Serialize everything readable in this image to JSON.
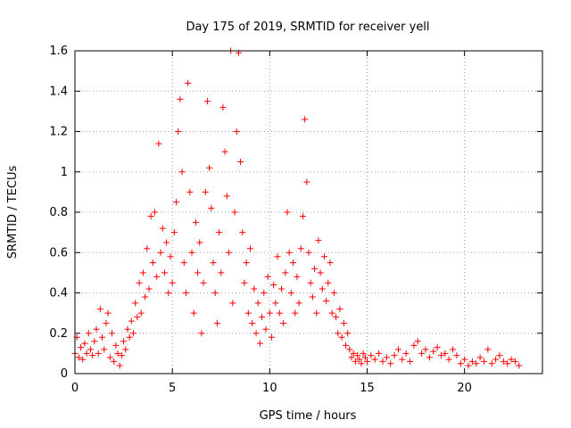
{
  "chart_data": {
    "type": "scatter",
    "title": "Day 175 of 2019, SRMTID for receiver yell",
    "xlabel": "GPS time / hours",
    "ylabel": "SRMTID / TECUs",
    "xlim": [
      0,
      24
    ],
    "ylim": [
      0,
      1.6
    ],
    "xticks": [
      0,
      5,
      10,
      15,
      20
    ],
    "xtick_labels": [
      "0",
      "5",
      "10",
      "15",
      "20"
    ],
    "yticks": [
      0,
      0.2,
      0.4,
      0.6,
      0.8,
      1,
      1.2,
      1.4,
      1.6
    ],
    "ytick_labels": [
      "0",
      "0.2",
      "0.4",
      "0.6",
      "0.8",
      "1",
      "1.2",
      "1.4",
      "1.6"
    ],
    "grid": true,
    "marker": "+",
    "marker_color": "#ff0000",
    "series": [
      {
        "name": "SRMTID",
        "points": [
          [
            0.0,
            0.1
          ],
          [
            0.1,
            0.18
          ],
          [
            0.2,
            0.08
          ],
          [
            0.3,
            0.13
          ],
          [
            0.4,
            0.07
          ],
          [
            0.5,
            0.15
          ],
          [
            0.6,
            0.1
          ],
          [
            0.7,
            0.2
          ],
          [
            0.8,
            0.12
          ],
          [
            0.9,
            0.09
          ],
          [
            1.0,
            0.16
          ],
          [
            1.1,
            0.22
          ],
          [
            1.2,
            0.1
          ],
          [
            1.3,
            0.32
          ],
          [
            1.4,
            0.18
          ],
          [
            1.5,
            0.12
          ],
          [
            1.6,
            0.25
          ],
          [
            1.7,
            0.3
          ],
          [
            1.8,
            0.08
          ],
          [
            1.9,
            0.2
          ],
          [
            2.0,
            0.06
          ],
          [
            2.1,
            0.14
          ],
          [
            2.2,
            0.1
          ],
          [
            2.3,
            0.04
          ],
          [
            2.4,
            0.09
          ],
          [
            2.5,
            0.16
          ],
          [
            2.6,
            0.12
          ],
          [
            2.7,
            0.22
          ],
          [
            2.8,
            0.18
          ],
          [
            2.9,
            0.26
          ],
          [
            3.0,
            0.2
          ],
          [
            3.1,
            0.35
          ],
          [
            3.2,
            0.28
          ],
          [
            3.3,
            0.45
          ],
          [
            3.4,
            0.3
          ],
          [
            3.5,
            0.5
          ],
          [
            3.6,
            0.38
          ],
          [
            3.7,
            0.62
          ],
          [
            3.8,
            0.42
          ],
          [
            3.9,
            0.78
          ],
          [
            4.0,
            0.55
          ],
          [
            4.1,
            0.8
          ],
          [
            4.2,
            0.48
          ],
          [
            4.3,
            1.14
          ],
          [
            4.4,
            0.6
          ],
          [
            4.5,
            0.72
          ],
          [
            4.6,
            0.5
          ],
          [
            4.7,
            0.65
          ],
          [
            4.8,
            0.4
          ],
          [
            4.9,
            0.58
          ],
          [
            5.0,
            0.45
          ],
          [
            5.1,
            0.7
          ],
          [
            5.2,
            0.85
          ],
          [
            5.3,
            1.2
          ],
          [
            5.4,
            1.36
          ],
          [
            5.5,
            1.0
          ],
          [
            5.6,
            0.55
          ],
          [
            5.7,
            0.4
          ],
          [
            5.8,
            1.44
          ],
          [
            5.9,
            0.9
          ],
          [
            6.0,
            0.6
          ],
          [
            6.1,
            0.3
          ],
          [
            6.2,
            0.75
          ],
          [
            6.3,
            0.5
          ],
          [
            6.4,
            0.65
          ],
          [
            6.5,
            0.2
          ],
          [
            6.6,
            0.45
          ],
          [
            6.7,
            0.9
          ],
          [
            6.8,
            1.35
          ],
          [
            6.9,
            1.02
          ],
          [
            7.0,
            0.82
          ],
          [
            7.1,
            0.55
          ],
          [
            7.2,
            0.4
          ],
          [
            7.3,
            0.25
          ],
          [
            7.4,
            0.7
          ],
          [
            7.5,
            0.5
          ],
          [
            7.6,
            1.32
          ],
          [
            7.7,
            1.1
          ],
          [
            7.8,
            0.88
          ],
          [
            7.9,
            0.6
          ],
          [
            8.0,
            1.6
          ],
          [
            8.1,
            0.35
          ],
          [
            8.2,
            0.8
          ],
          [
            8.3,
            1.2
          ],
          [
            8.4,
            1.59
          ],
          [
            8.5,
            1.05
          ],
          [
            8.6,
            0.7
          ],
          [
            8.7,
            0.45
          ],
          [
            8.8,
            0.55
          ],
          [
            8.9,
            0.3
          ],
          [
            9.0,
            0.62
          ],
          [
            9.1,
            0.25
          ],
          [
            9.2,
            0.42
          ],
          [
            9.3,
            0.2
          ],
          [
            9.4,
            0.35
          ],
          [
            9.5,
            0.15
          ],
          [
            9.6,
            0.28
          ],
          [
            9.7,
            0.4
          ],
          [
            9.8,
            0.22
          ],
          [
            9.9,
            0.48
          ],
          [
            10.0,
            0.3
          ],
          [
            10.1,
            0.18
          ],
          [
            10.2,
            0.44
          ],
          [
            10.3,
            0.35
          ],
          [
            10.4,
            0.58
          ],
          [
            10.5,
            0.3
          ],
          [
            10.6,
            0.42
          ],
          [
            10.7,
            0.25
          ],
          [
            10.8,
            0.5
          ],
          [
            10.9,
            0.8
          ],
          [
            11.0,
            0.6
          ],
          [
            11.1,
            0.4
          ],
          [
            11.2,
            0.55
          ],
          [
            11.3,
            0.3
          ],
          [
            11.4,
            0.48
          ],
          [
            11.5,
            0.35
          ],
          [
            11.6,
            0.62
          ],
          [
            11.7,
            0.78
          ],
          [
            11.8,
            1.26
          ],
          [
            11.9,
            0.95
          ],
          [
            12.0,
            0.6
          ],
          [
            12.1,
            0.45
          ],
          [
            12.2,
            0.38
          ],
          [
            12.3,
            0.52
          ],
          [
            12.4,
            0.3
          ],
          [
            12.5,
            0.66
          ],
          [
            12.6,
            0.5
          ],
          [
            12.7,
            0.42
          ],
          [
            12.8,
            0.58
          ],
          [
            12.9,
            0.36
          ],
          [
            13.0,
            0.45
          ],
          [
            13.1,
            0.55
          ],
          [
            13.2,
            0.3
          ],
          [
            13.3,
            0.4
          ],
          [
            13.4,
            0.28
          ],
          [
            13.5,
            0.2
          ],
          [
            13.6,
            0.32
          ],
          [
            13.7,
            0.18
          ],
          [
            13.8,
            0.25
          ],
          [
            13.9,
            0.14
          ],
          [
            14.0,
            0.2
          ],
          [
            14.1,
            0.12
          ],
          [
            14.2,
            0.08
          ],
          [
            14.3,
            0.1
          ],
          [
            14.4,
            0.06
          ],
          [
            14.5,
            0.09
          ],
          [
            14.6,
            0.07
          ],
          [
            14.7,
            0.05
          ],
          [
            14.8,
            0.1
          ],
          [
            14.9,
            0.08
          ],
          [
            15.0,
            0.06
          ],
          [
            15.2,
            0.09
          ],
          [
            15.4,
            0.07
          ],
          [
            15.6,
            0.1
          ],
          [
            15.8,
            0.06
          ],
          [
            16.0,
            0.08
          ],
          [
            16.2,
            0.05
          ],
          [
            16.4,
            0.09
          ],
          [
            16.6,
            0.12
          ],
          [
            16.8,
            0.07
          ],
          [
            17.0,
            0.1
          ],
          [
            17.2,
            0.06
          ],
          [
            17.4,
            0.14
          ],
          [
            17.6,
            0.16
          ],
          [
            17.8,
            0.1
          ],
          [
            18.0,
            0.12
          ],
          [
            18.2,
            0.08
          ],
          [
            18.4,
            0.11
          ],
          [
            18.6,
            0.13
          ],
          [
            18.8,
            0.09
          ],
          [
            19.0,
            0.1
          ],
          [
            19.2,
            0.07
          ],
          [
            19.4,
            0.12
          ],
          [
            19.6,
            0.09
          ],
          [
            19.8,
            0.05
          ],
          [
            20.0,
            0.07
          ],
          [
            20.2,
            0.04
          ],
          [
            20.4,
            0.06
          ],
          [
            20.6,
            0.05
          ],
          [
            20.8,
            0.08
          ],
          [
            21.0,
            0.06
          ],
          [
            21.2,
            0.12
          ],
          [
            21.4,
            0.05
          ],
          [
            21.6,
            0.07
          ],
          [
            21.8,
            0.09
          ],
          [
            22.0,
            0.06
          ],
          [
            22.2,
            0.05
          ],
          [
            22.4,
            0.07
          ],
          [
            22.6,
            0.06
          ],
          [
            22.8,
            0.04
          ]
        ]
      }
    ]
  }
}
